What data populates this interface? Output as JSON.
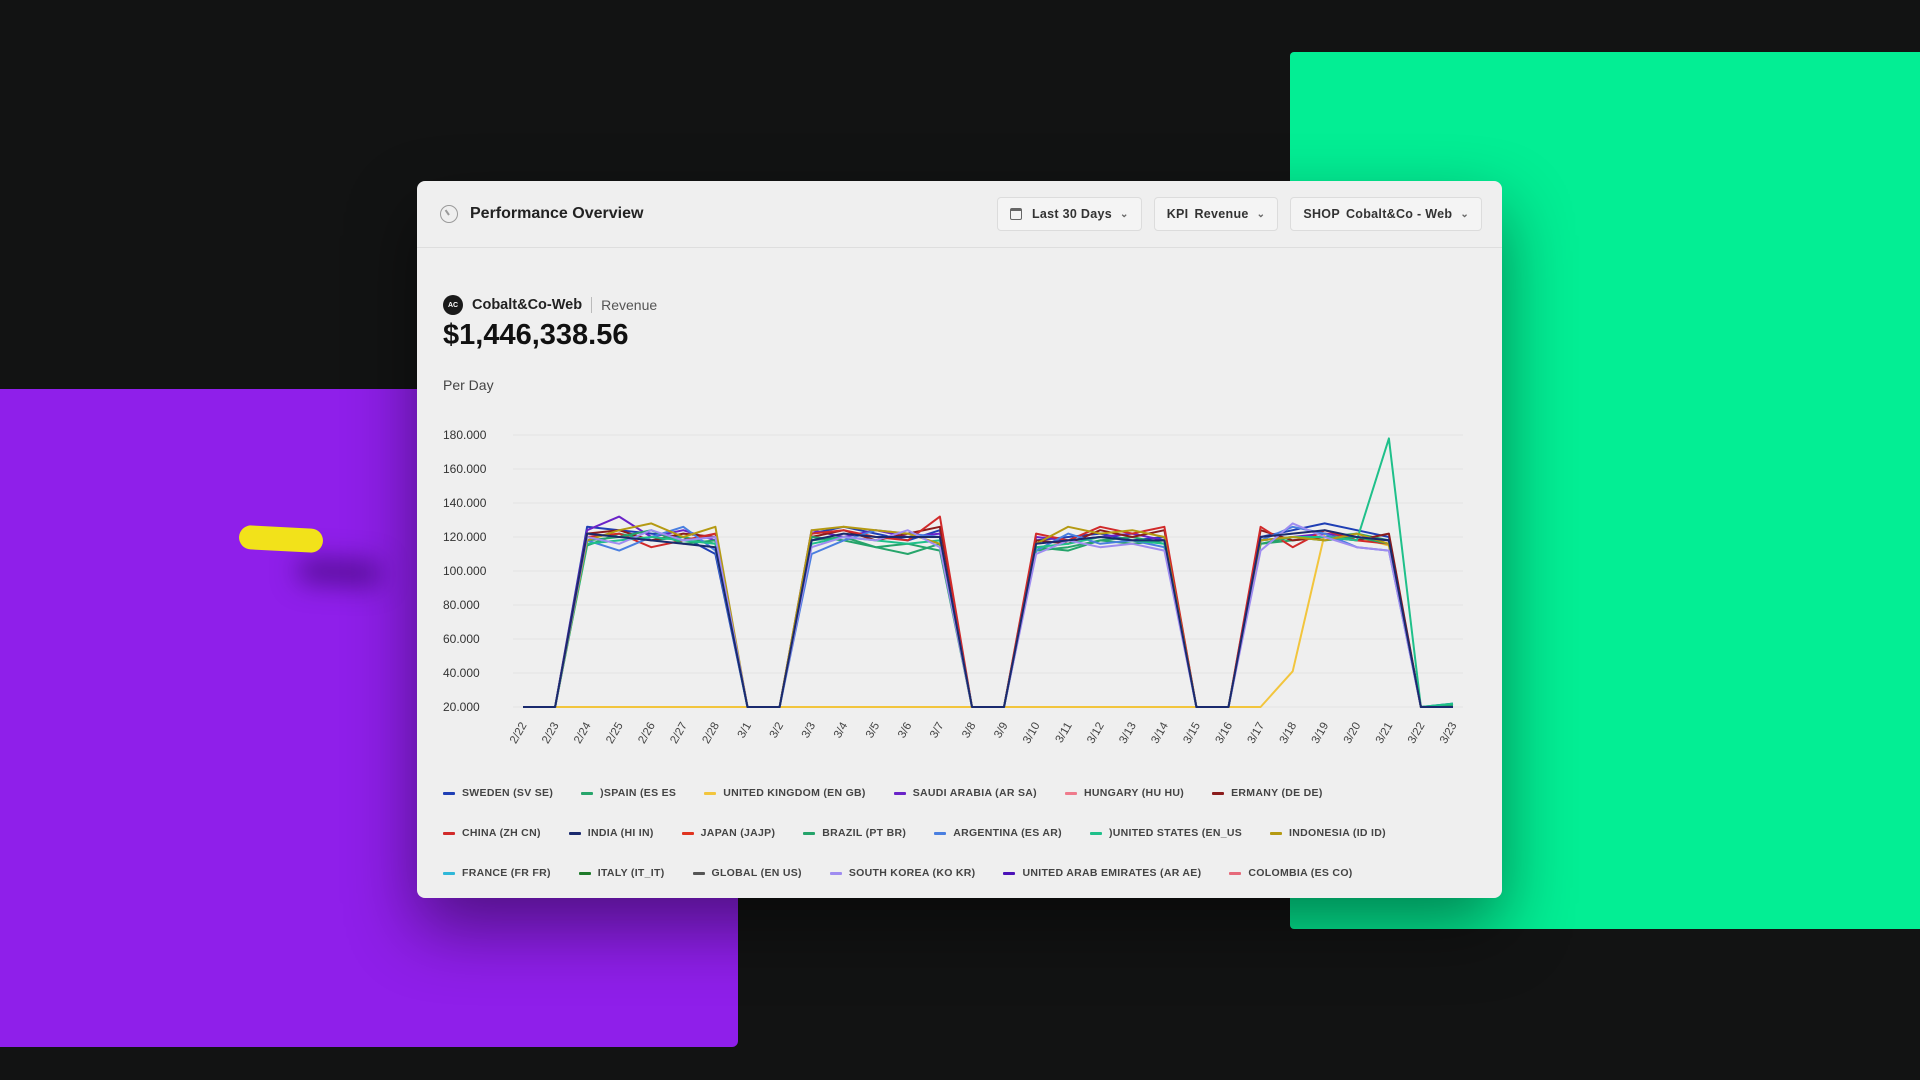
{
  "colors": {
    "background": "#121313",
    "accent_purple": "#8f1fea",
    "accent_green": "#03ee94",
    "pill": "#f2e21a"
  },
  "header": {
    "icon": "gauge-icon",
    "title": "Performance Overview",
    "date_range": "Last 30 Days",
    "kpi_prefix": "KPI",
    "kpi_value": "Revenue",
    "shop_prefix": "SHOP",
    "shop_value": "Cobalt&Co - Web"
  },
  "summary": {
    "avatar": "AC",
    "shop_name": "Cobalt&Co-Web",
    "metric": "Revenue",
    "total": "$1,446,338.56",
    "period_label": "Per Day"
  },
  "legend": [
    {
      "label": "SWEDEN (SV SE)",
      "color": "#1f3fb5"
    },
    {
      "label": ")SPAIN (ES ES",
      "color": "#27a56b"
    },
    {
      "label": "UNITED KINGDOM (EN GB)",
      "color": "#f2c53d"
    },
    {
      "label": "SAUDI ARABIA (AR SA)",
      "color": "#6a23c8"
    },
    {
      "label": "HUNGARY (HU HU)",
      "color": "#ef7b8c"
    },
    {
      "label": "ERMANY (DE DE)",
      "color": "#8b1c1c"
    },
    {
      "label": "CHINA (ZH CN)",
      "color": "#d12a2a"
    },
    {
      "label": "INDIA (HI IN)",
      "color": "#1a2a6e"
    },
    {
      "label": "JAPAN (JAJP)",
      "color": "#e0341f"
    },
    {
      "label": "BRAZIL (PT BR)",
      "color": "#24a36a"
    },
    {
      "label": "ARGENTINA (ES AR)",
      "color": "#4a7fe0"
    },
    {
      "label": ")UNITED STATES (EN_US",
      "color": "#1fc08a"
    },
    {
      "label": "INDONESIA (ID ID)",
      "color": "#b59a12"
    },
    {
      "label": "FRANCE (FR FR)",
      "color": "#2fb7d8"
    },
    {
      "label": "ITALY (IT_IT)",
      "color": "#1e7a2a"
    },
    {
      "label": "GLOBAL (EN US)",
      "color": "#555555"
    },
    {
      "label": "SOUTH KOREA (KO KR)",
      "color": "#9f8cf0"
    },
    {
      "label": "UNITED ARAB EMIRATES (AR AE)",
      "color": "#4b12b8"
    },
    {
      "label": "COLOMBIA (ES CO)",
      "color": "#e66a7a"
    }
  ],
  "chart_data": {
    "type": "line",
    "y_ticks": [
      "180.000",
      "160.000",
      "140.000",
      "120.000",
      "100.000",
      "80.000",
      "60.000",
      "40.000",
      "20.000"
    ],
    "ylim": [
      20000,
      180000
    ],
    "grid": true,
    "legend_placement": "bottom",
    "categories": [
      "2/22",
      "2/23",
      "2/24",
      "2/25",
      "2/26",
      "2/27",
      "2/28",
      "3/1",
      "3/2",
      "3/3",
      "3/4",
      "3/5",
      "3/6",
      "3/7",
      "3/8",
      "3/9",
      "3/10",
      "3/11",
      "3/12",
      "3/13",
      "3/14",
      "3/15",
      "3/16",
      "3/17",
      "3/18",
      "3/19",
      "3/20",
      "3/21",
      "3/22",
      "3/23"
    ],
    "series": [
      {
        "name": "SWEDEN (SV SE)",
        "color": "#1f3fb5",
        "values": [
          20000,
          20000,
          126000,
          124000,
          122000,
          120000,
          110000,
          20000,
          20000,
          122000,
          126000,
          122000,
          118000,
          124000,
          20000,
          20000,
          118000,
          120000,
          122000,
          118000,
          120000,
          20000,
          20000,
          120000,
          124000,
          128000,
          124000,
          120000,
          20000,
          22000
        ]
      },
      {
        "name": ")SPAIN (ES ES",
        "color": "#27a56b",
        "values": [
          20000,
          20000,
          115000,
          122000,
          118000,
          120000,
          116000,
          20000,
          20000,
          118000,
          120000,
          114000,
          110000,
          116000,
          20000,
          20000,
          112000,
          114000,
          118000,
          120000,
          116000,
          20000,
          20000,
          116000,
          118000,
          120000,
          122000,
          118000,
          20000,
          21000
        ]
      },
      {
        "name": "UNITED KINGDOM (EN GB)",
        "color": "#f2c53d",
        "values": [
          20000,
          20000,
          20000,
          20000,
          20000,
          20000,
          20000,
          20000,
          20000,
          20000,
          20000,
          20000,
          20000,
          20000,
          20000,
          20000,
          20000,
          20000,
          20000,
          20000,
          20000,
          20000,
          20000,
          20000,
          41000,
          122000,
          120000,
          115000,
          20000,
          20000
        ]
      },
      {
        "name": "SAUDI ARABIA (AR SA)",
        "color": "#6a23c8",
        "values": [
          20000,
          20000,
          124000,
          132000,
          120000,
          124000,
          118000,
          20000,
          20000,
          124000,
          120000,
          124000,
          120000,
          122000,
          20000,
          20000,
          120000,
          118000,
          120000,
          122000,
          118000,
          20000,
          20000,
          118000,
          120000,
          122000,
          120000,
          118000,
          20000,
          20000
        ]
      },
      {
        "name": "ERMANY (DE DE)",
        "color": "#8b1c1c",
        "values": [
          20000,
          20000,
          122000,
          124000,
          118000,
          122000,
          120000,
          20000,
          20000,
          120000,
          124000,
          118000,
          122000,
          126000,
          20000,
          20000,
          118000,
          116000,
          124000,
          120000,
          124000,
          20000,
          20000,
          124000,
          118000,
          120000,
          118000,
          122000,
          20000,
          20000
        ]
      },
      {
        "name": "CHINA (ZH CN)",
        "color": "#d12a2a",
        "values": [
          20000,
          20000,
          120000,
          122000,
          114000,
          118000,
          122000,
          20000,
          20000,
          122000,
          124000,
          120000,
          118000,
          132000,
          20000,
          20000,
          122000,
          118000,
          126000,
          122000,
          126000,
          20000,
          20000,
          126000,
          114000,
          124000,
          118000,
          116000,
          20000,
          20000
        ]
      },
      {
        "name": "BRAZIL (PT BR)",
        "color": "#24a36a",
        "values": [
          20000,
          20000,
          118000,
          120000,
          124000,
          116000,
          118000,
          20000,
          20000,
          120000,
          118000,
          114000,
          116000,
          112000,
          20000,
          20000,
          114000,
          112000,
          118000,
          116000,
          118000,
          20000,
          20000,
          116000,
          120000,
          118000,
          120000,
          116000,
          20000,
          20000
        ]
      },
      {
        "name": "ARGENTINA (ES AR)",
        "color": "#4a7fe0",
        "values": [
          20000,
          20000,
          118000,
          112000,
          120000,
          126000,
          112000,
          20000,
          20000,
          110000,
          118000,
          124000,
          122000,
          120000,
          20000,
          20000,
          112000,
          122000,
          116000,
          118000,
          114000,
          20000,
          20000,
          118000,
          126000,
          122000,
          114000,
          112000,
          20000,
          20000
        ]
      },
      {
        "name": ")UNITED STATES (EN_US",
        "color": "#1fc08a",
        "values": [
          20000,
          20000,
          116000,
          118000,
          120000,
          118000,
          116000,
          20000,
          20000,
          116000,
          120000,
          118000,
          116000,
          118000,
          20000,
          20000,
          114000,
          116000,
          120000,
          118000,
          116000,
          20000,
          20000,
          118000,
          120000,
          120000,
          118000,
          178000,
          20000,
          22000
        ]
      },
      {
        "name": "INDONESIA (ID ID)",
        "color": "#b59a12",
        "values": [
          20000,
          20000,
          118000,
          124000,
          128000,
          120000,
          126000,
          20000,
          20000,
          124000,
          126000,
          124000,
          122000,
          116000,
          20000,
          20000,
          116000,
          126000,
          122000,
          124000,
          120000,
          20000,
          20000,
          118000,
          120000,
          118000,
          122000,
          116000,
          20000,
          20000
        ]
      },
      {
        "name": "SOUTH KOREA (KO KR)",
        "color": "#9f8cf0",
        "values": [
          20000,
          20000,
          120000,
          116000,
          124000,
          118000,
          120000,
          20000,
          20000,
          114000,
          120000,
          118000,
          124000,
          114000,
          20000,
          20000,
          110000,
          118000,
          114000,
          116000,
          112000,
          20000,
          20000,
          112000,
          128000,
          120000,
          114000,
          112000,
          20000,
          20000
        ]
      },
      {
        "name": "INDIA (HI IN)",
        "color": "#1a2a6e",
        "values": [
          20000,
          20000,
          122000,
          120000,
          118000,
          116000,
          114000,
          20000,
          20000,
          118000,
          122000,
          120000,
          120000,
          120000,
          20000,
          20000,
          116000,
          118000,
          120000,
          118000,
          118000,
          20000,
          20000,
          120000,
          122000,
          124000,
          120000,
          118000,
          20000,
          20000
        ]
      }
    ]
  }
}
